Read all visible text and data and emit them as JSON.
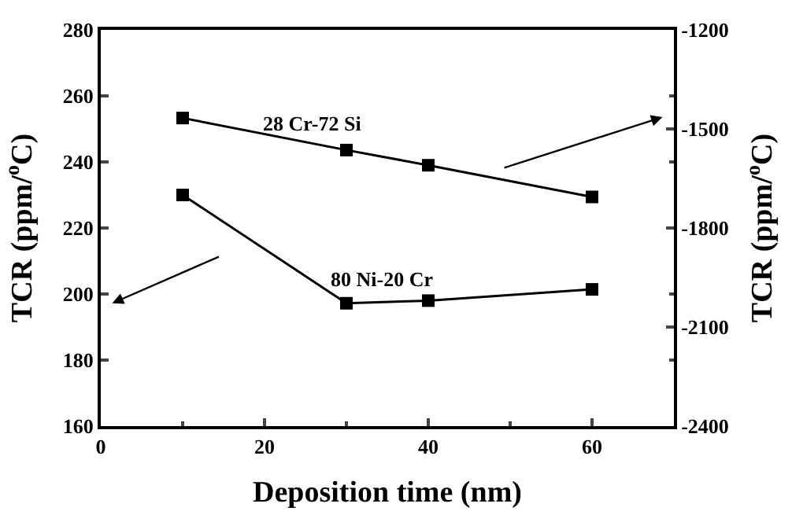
{
  "chart_data": {
    "type": "line",
    "xlabel": "Deposition time (nm)",
    "ylabel": "TCR (ppm/$^{o}$C)",
    "y2label": "TCR (ppm/$^{o}$C)",
    "x": [
      10,
      30,
      40,
      60
    ],
    "series": [
      {
        "name": "28 Cr-72 Si",
        "color": "#000000",
        "values": [
          -1467,
          -1564,
          -1610,
          -1706
        ],
        "axis": "y2"
      },
      {
        "name": "80 Ni-20 Cr",
        "color": "#000000",
        "values": [
          230,
          197.2,
          198,
          201.4
        ]
      }
    ],
    "xlim": [
      0,
      70
    ],
    "xticks": [
      0,
      20,
      40,
      60
    ],
    "ylim": [
      160,
      280
    ],
    "yticks": [
      160,
      180,
      200,
      220,
      240,
      260,
      280
    ],
    "y2lim": [
      -2400,
      -1200
    ],
    "y2ticks": [
      -2400,
      -2100,
      -1800,
      -1500,
      -1200
    ],
    "marker": "square",
    "line_style": "solid",
    "legend": false
  }
}
